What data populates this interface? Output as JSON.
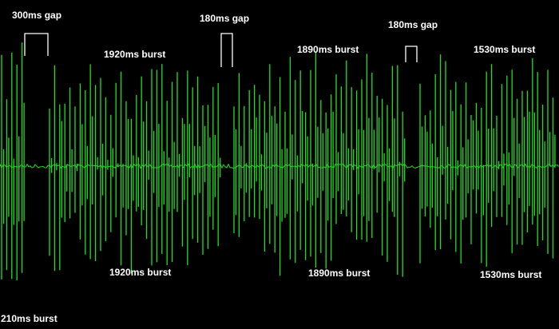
{
  "annotations": [
    "300ms gap",
    "180ms gap",
    "180ms gap",
    "1920ms burst",
    "1920ms burst",
    "1890ms burst",
    "1890ms burst",
    "1530ms burst",
    "1530ms burst",
    "210ms burst"
  ]
}
